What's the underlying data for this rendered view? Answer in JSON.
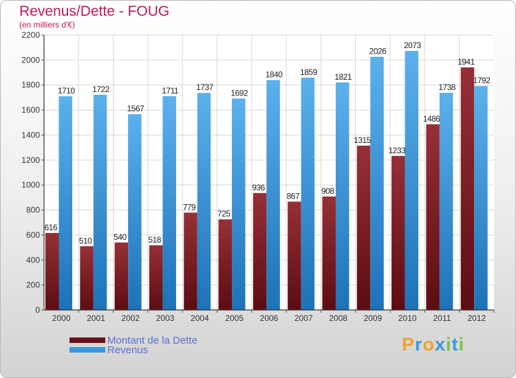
{
  "chart_data": {
    "type": "bar",
    "title": "Revenus/Dette - FOUG",
    "subtitle": "(en milliers d'€)",
    "categories": [
      "2000",
      "2001",
      "2002",
      "2003",
      "2004",
      "2005",
      "2006",
      "2007",
      "2008",
      "2009",
      "2010",
      "2011",
      "2012"
    ],
    "series": [
      {
        "name": "Montant de la Dette",
        "values": [
          616,
          510,
          540,
          518,
          779,
          725,
          936,
          867,
          908,
          1315,
          1233,
          1486,
          1941
        ],
        "color": "#7a1520"
      },
      {
        "name": "Revenus",
        "values": [
          1710,
          1722,
          1567,
          1711,
          1737,
          1692,
          1840,
          1859,
          1821,
          2026,
          2073,
          1738,
          1792
        ],
        "color": "#3a97df"
      }
    ],
    "ylim": [
      0,
      2200
    ],
    "yticks": [
      0,
      200,
      400,
      600,
      800,
      1000,
      1200,
      1400,
      1600,
      1800,
      2000,
      2200
    ],
    "grid": true,
    "legend_position": "bottom-left"
  },
  "branding": {
    "logo_letters": [
      "P",
      "r",
      "o",
      "x",
      "i",
      "t",
      "i"
    ],
    "logo_colors": [
      "#f0a030",
      "#3a97df",
      "#f0a030",
      "#3a97df",
      "#7fbf3f",
      "#3a97df",
      "#7fbf3f"
    ]
  }
}
